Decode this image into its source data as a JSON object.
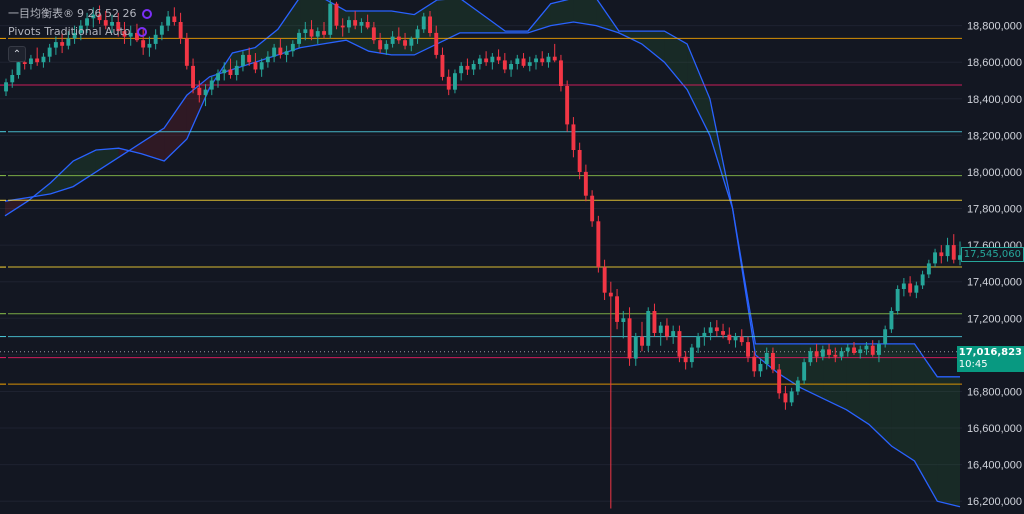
{
  "legend": {
    "ichimoku_name": "一目均衡表®",
    "ichimoku_params": "9 26 52 26",
    "pivots_name": "Pivots Traditional Auto",
    "collapse_icon": "chevron-up-icon"
  },
  "price_badges": {
    "last_price": "17,545,060",
    "current_price": "17,016,823",
    "countdown": "10:45"
  },
  "colors": {
    "background": "#131722",
    "bull": "#26a69a",
    "bear": "#f23645",
    "cloud_line": "#2962ff",
    "badge_current": "#089981"
  },
  "chart_data": {
    "type": "candlestick",
    "y_axis": {
      "ticks": [
        16200000,
        16400000,
        16600000,
        16800000,
        17000000,
        17200000,
        17400000,
        17600000,
        17800000,
        18000000,
        18200000,
        18400000,
        18600000,
        18800000
      ],
      "tick_labels": [
        "16,200,000",
        "16,400,000",
        "16,600,000",
        "16,800,000",
        "17,000,000",
        "17,200,000",
        "17,400,000",
        "17,600,000",
        "17,800,000",
        "18,000,000",
        "18,200,000",
        "18,400,000",
        "18,600,000",
        "18,800,000"
      ],
      "range": [
        16130000,
        18940000
      ]
    },
    "pivot_levels": [
      {
        "price": 18730000,
        "color": "#f7a600"
      },
      {
        "price": 18475000,
        "color": "#e91e63"
      },
      {
        "price": 18220000,
        "color": "#4dd0e1"
      },
      {
        "price": 17980000,
        "color": "#8bc34a"
      },
      {
        "price": 17845000,
        "color": "#fdd835"
      },
      {
        "price": 17480000,
        "color": "#fdd835"
      },
      {
        "price": 17225000,
        "color": "#8bc34a"
      },
      {
        "price": 17100000,
        "color": "#4dd0e1"
      },
      {
        "price": 16985000,
        "color": "#e91e63"
      },
      {
        "price": 16840000,
        "color": "#f7a600"
      }
    ],
    "candles": [
      [
        18440000,
        18510000,
        18415000,
        18490000
      ],
      [
        18490000,
        18560000,
        18460000,
        18530000
      ],
      [
        18530000,
        18640000,
        18510000,
        18600000
      ],
      [
        18600000,
        18650000,
        18560000,
        18590000
      ],
      [
        18590000,
        18640000,
        18560000,
        18620000
      ],
      [
        18620000,
        18680000,
        18580000,
        18600000
      ],
      [
        18600000,
        18650000,
        18570000,
        18630000
      ],
      [
        18630000,
        18700000,
        18600000,
        18680000
      ],
      [
        18680000,
        18740000,
        18640000,
        18710000
      ],
      [
        18710000,
        18760000,
        18650000,
        18690000
      ],
      [
        18690000,
        18770000,
        18670000,
        18730000
      ],
      [
        18730000,
        18800000,
        18700000,
        18760000
      ],
      [
        18760000,
        18830000,
        18720000,
        18800000
      ],
      [
        18800000,
        18870000,
        18760000,
        18840000
      ],
      [
        18840000,
        18900000,
        18790000,
        18860000
      ],
      [
        18860000,
        18910000,
        18810000,
        18830000
      ],
      [
        18830000,
        18880000,
        18780000,
        18800000
      ],
      [
        18800000,
        18860000,
        18760000,
        18820000
      ],
      [
        18820000,
        18870000,
        18740000,
        18770000
      ],
      [
        18770000,
        18820000,
        18700000,
        18740000
      ],
      [
        18740000,
        18800000,
        18690000,
        18760000
      ],
      [
        18760000,
        18810000,
        18710000,
        18720000
      ],
      [
        18720000,
        18780000,
        18640000,
        18680000
      ],
      [
        18680000,
        18740000,
        18630000,
        18700000
      ],
      [
        18700000,
        18780000,
        18670000,
        18750000
      ],
      [
        18750000,
        18820000,
        18720000,
        18800000
      ],
      [
        18800000,
        18880000,
        18770000,
        18850000
      ],
      [
        18850000,
        18900000,
        18800000,
        18820000
      ],
      [
        18820000,
        18870000,
        18700000,
        18730000
      ],
      [
        18730000,
        18760000,
        18560000,
        18580000
      ],
      [
        18580000,
        18620000,
        18430000,
        18460000
      ],
      [
        18460000,
        18500000,
        18380000,
        18420000
      ],
      [
        18420000,
        18480000,
        18360000,
        18450000
      ],
      [
        18450000,
        18520000,
        18420000,
        18500000
      ],
      [
        18500000,
        18560000,
        18460000,
        18540000
      ],
      [
        18540000,
        18600000,
        18500000,
        18560000
      ],
      [
        18560000,
        18620000,
        18510000,
        18530000
      ],
      [
        18530000,
        18610000,
        18500000,
        18580000
      ],
      [
        18580000,
        18660000,
        18550000,
        18640000
      ],
      [
        18640000,
        18680000,
        18580000,
        18600000
      ],
      [
        18600000,
        18650000,
        18540000,
        18560000
      ],
      [
        18560000,
        18620000,
        18520000,
        18600000
      ],
      [
        18600000,
        18660000,
        18570000,
        18630000
      ],
      [
        18630000,
        18700000,
        18600000,
        18680000
      ],
      [
        18680000,
        18730000,
        18620000,
        18640000
      ],
      [
        18640000,
        18690000,
        18600000,
        18660000
      ],
      [
        18660000,
        18720000,
        18630000,
        18700000
      ],
      [
        18700000,
        18780000,
        18680000,
        18760000
      ],
      [
        18760000,
        18820000,
        18720000,
        18780000
      ],
      [
        18780000,
        18830000,
        18720000,
        18740000
      ],
      [
        18740000,
        18790000,
        18700000,
        18770000
      ],
      [
        18770000,
        18820000,
        18730000,
        18750000
      ],
      [
        18750000,
        18940000,
        18730000,
        18920000
      ],
      [
        18920000,
        18930000,
        18780000,
        18800000
      ],
      [
        18800000,
        18840000,
        18740000,
        18790000
      ],
      [
        18790000,
        18850000,
        18760000,
        18830000
      ],
      [
        18830000,
        18880000,
        18780000,
        18800000
      ],
      [
        18800000,
        18840000,
        18760000,
        18820000
      ],
      [
        18820000,
        18860000,
        18780000,
        18790000
      ],
      [
        18790000,
        18820000,
        18700000,
        18720000
      ],
      [
        18720000,
        18760000,
        18650000,
        18670000
      ],
      [
        18670000,
        18720000,
        18640000,
        18700000
      ],
      [
        18700000,
        18770000,
        18680000,
        18740000
      ],
      [
        18740000,
        18790000,
        18700000,
        18720000
      ],
      [
        18720000,
        18760000,
        18670000,
        18690000
      ],
      [
        18690000,
        18740000,
        18660000,
        18730000
      ],
      [
        18730000,
        18800000,
        18700000,
        18780000
      ],
      [
        18780000,
        18870000,
        18760000,
        18850000
      ],
      [
        18850000,
        18880000,
        18740000,
        18760000
      ],
      [
        18760000,
        18800000,
        18620000,
        18640000
      ],
      [
        18640000,
        18680000,
        18500000,
        18520000
      ],
      [
        18520000,
        18560000,
        18420000,
        18450000
      ],
      [
        18450000,
        18560000,
        18430000,
        18540000
      ],
      [
        18540000,
        18600000,
        18500000,
        18580000
      ],
      [
        18580000,
        18620000,
        18530000,
        18560000
      ],
      [
        18560000,
        18610000,
        18530000,
        18590000
      ],
      [
        18590000,
        18640000,
        18560000,
        18620000
      ],
      [
        18620000,
        18660000,
        18580000,
        18600000
      ],
      [
        18600000,
        18650000,
        18560000,
        18630000
      ],
      [
        18630000,
        18670000,
        18590000,
        18610000
      ],
      [
        18610000,
        18650000,
        18540000,
        18560000
      ],
      [
        18560000,
        18610000,
        18520000,
        18590000
      ],
      [
        18590000,
        18640000,
        18560000,
        18620000
      ],
      [
        18620000,
        18650000,
        18570000,
        18580000
      ],
      [
        18580000,
        18630000,
        18550000,
        18600000
      ],
      [
        18600000,
        18640000,
        18560000,
        18620000
      ],
      [
        18620000,
        18660000,
        18580000,
        18600000
      ],
      [
        18600000,
        18650000,
        18570000,
        18630000
      ],
      [
        18630000,
        18700000,
        18600000,
        18610000
      ],
      [
        18610000,
        18640000,
        18440000,
        18470000
      ],
      [
        18470000,
        18500000,
        18220000,
        18260000
      ],
      [
        18260000,
        18300000,
        18080000,
        18120000
      ],
      [
        18120000,
        18160000,
        17960000,
        18000000
      ],
      [
        18000000,
        18040000,
        17840000,
        17870000
      ],
      [
        17870000,
        17900000,
        17700000,
        17730000
      ],
      [
        17730000,
        17760000,
        17450000,
        17480000
      ],
      [
        17480000,
        17520000,
        17300000,
        17340000
      ],
      [
        17340000,
        17400000,
        16160000,
        17320000
      ],
      [
        17320000,
        17360000,
        17140000,
        17180000
      ],
      [
        17180000,
        17240000,
        17090000,
        17200000
      ],
      [
        17200000,
        17260000,
        16940000,
        16980000
      ],
      [
        16980000,
        17120000,
        16940000,
        17100000
      ],
      [
        17100000,
        17180000,
        17020000,
        17050000
      ],
      [
        17050000,
        17260000,
        17020000,
        17240000
      ],
      [
        17240000,
        17280000,
        17100000,
        17120000
      ],
      [
        17120000,
        17180000,
        17050000,
        17160000
      ],
      [
        17160000,
        17200000,
        17080000,
        17100000
      ],
      [
        17100000,
        17160000,
        17060000,
        17130000
      ],
      [
        17130000,
        17160000,
        16960000,
        16990000
      ],
      [
        16990000,
        17020000,
        16920000,
        16960000
      ],
      [
        16960000,
        17060000,
        16930000,
        17040000
      ],
      [
        17040000,
        17120000,
        17010000,
        17100000
      ],
      [
        17100000,
        17150000,
        17050000,
        17120000
      ],
      [
        17120000,
        17180000,
        17080000,
        17150000
      ],
      [
        17150000,
        17190000,
        17100000,
        17130000
      ],
      [
        17130000,
        17170000,
        17090000,
        17110000
      ],
      [
        17110000,
        17150000,
        17060000,
        17080000
      ],
      [
        17080000,
        17120000,
        17040000,
        17100000
      ],
      [
        17100000,
        17140000,
        17050000,
        17070000
      ],
      [
        17070000,
        17100000,
        16960000,
        16990000
      ],
      [
        16990000,
        17020000,
        16880000,
        16910000
      ],
      [
        16910000,
        16980000,
        16880000,
        16950000
      ],
      [
        16950000,
        17040000,
        16920000,
        17010000
      ],
      [
        17010000,
        17040000,
        16900000,
        16920000
      ],
      [
        16920000,
        16950000,
        16760000,
        16790000
      ],
      [
        16790000,
        16830000,
        16700000,
        16740000
      ],
      [
        16740000,
        16820000,
        16720000,
        16800000
      ],
      [
        16800000,
        16880000,
        16780000,
        16860000
      ],
      [
        16860000,
        16980000,
        16840000,
        16960000
      ],
      [
        16960000,
        17040000,
        16940000,
        17020000
      ],
      [
        17020000,
        17060000,
        16960000,
        16990000
      ],
      [
        16990000,
        17050000,
        16970000,
        17030000
      ],
      [
        17030000,
        17060000,
        16980000,
        17000000
      ],
      [
        17000000,
        17040000,
        16960000,
        16990000
      ],
      [
        16990000,
        17040000,
        16970000,
        17020000
      ],
      [
        17020000,
        17060000,
        16990000,
        17040000
      ],
      [
        17040000,
        17070000,
        17000000,
        17010000
      ],
      [
        17010000,
        17050000,
        16980000,
        17030000
      ],
      [
        17030000,
        17070000,
        17000000,
        17050000
      ],
      [
        17050000,
        17080000,
        16990000,
        17000000
      ],
      [
        17000000,
        17080000,
        16960000,
        17060000
      ],
      [
        17060000,
        17160000,
        17040000,
        17140000
      ],
      [
        17140000,
        17260000,
        17120000,
        17240000
      ],
      [
        17240000,
        17380000,
        17220000,
        17360000
      ],
      [
        17360000,
        17420000,
        17320000,
        17390000
      ],
      [
        17390000,
        17430000,
        17320000,
        17340000
      ],
      [
        17340000,
        17400000,
        17310000,
        17380000
      ],
      [
        17380000,
        17460000,
        17360000,
        17440000
      ],
      [
        17440000,
        17520000,
        17420000,
        17500000
      ],
      [
        17500000,
        17580000,
        17480000,
        17560000
      ],
      [
        17560000,
        17600000,
        17500000,
        17540000
      ],
      [
        17540000,
        17640000,
        17510000,
        17600000
      ],
      [
        17600000,
        17660000,
        17500000,
        17520000
      ],
      [
        17520000,
        17620000,
        17490000,
        17545060
      ]
    ],
    "cloud_upper": [
      17760000,
      17840000,
      17940000,
      18060000,
      18120000,
      18130000,
      18100000,
      18060000,
      18180000,
      18460000,
      18650000,
      18680000,
      18780000,
      18960000,
      18950000,
      18880000,
      18880000,
      18880000,
      18860000,
      18940000,
      18950000,
      18860000,
      18770000,
      18770000,
      18920000,
      18950000,
      18950000,
      18770000,
      18770000,
      18770000,
      18700000,
      18400000,
      17800000,
      17060000,
      17060000,
      17060000,
      17060000,
      17060000,
      17060000,
      17060000,
      17060000,
      16880000,
      16880000
    ],
    "cloud_lower": [
      17840000,
      17860000,
      17880000,
      17920000,
      18000000,
      18080000,
      18160000,
      18240000,
      18420000,
      18520000,
      18560000,
      18600000,
      18640000,
      18680000,
      18700000,
      18720000,
      18660000,
      18640000,
      18640000,
      18700000,
      18760000,
      18760000,
      18760000,
      18760000,
      18800000,
      18820000,
      18800000,
      18760000,
      18700000,
      18600000,
      18450000,
      18200000,
      17800000,
      17000000,
      16900000,
      16820000,
      16760000,
      16700000,
      16620000,
      16500000,
      16420000,
      16200000,
      16170000
    ]
  }
}
